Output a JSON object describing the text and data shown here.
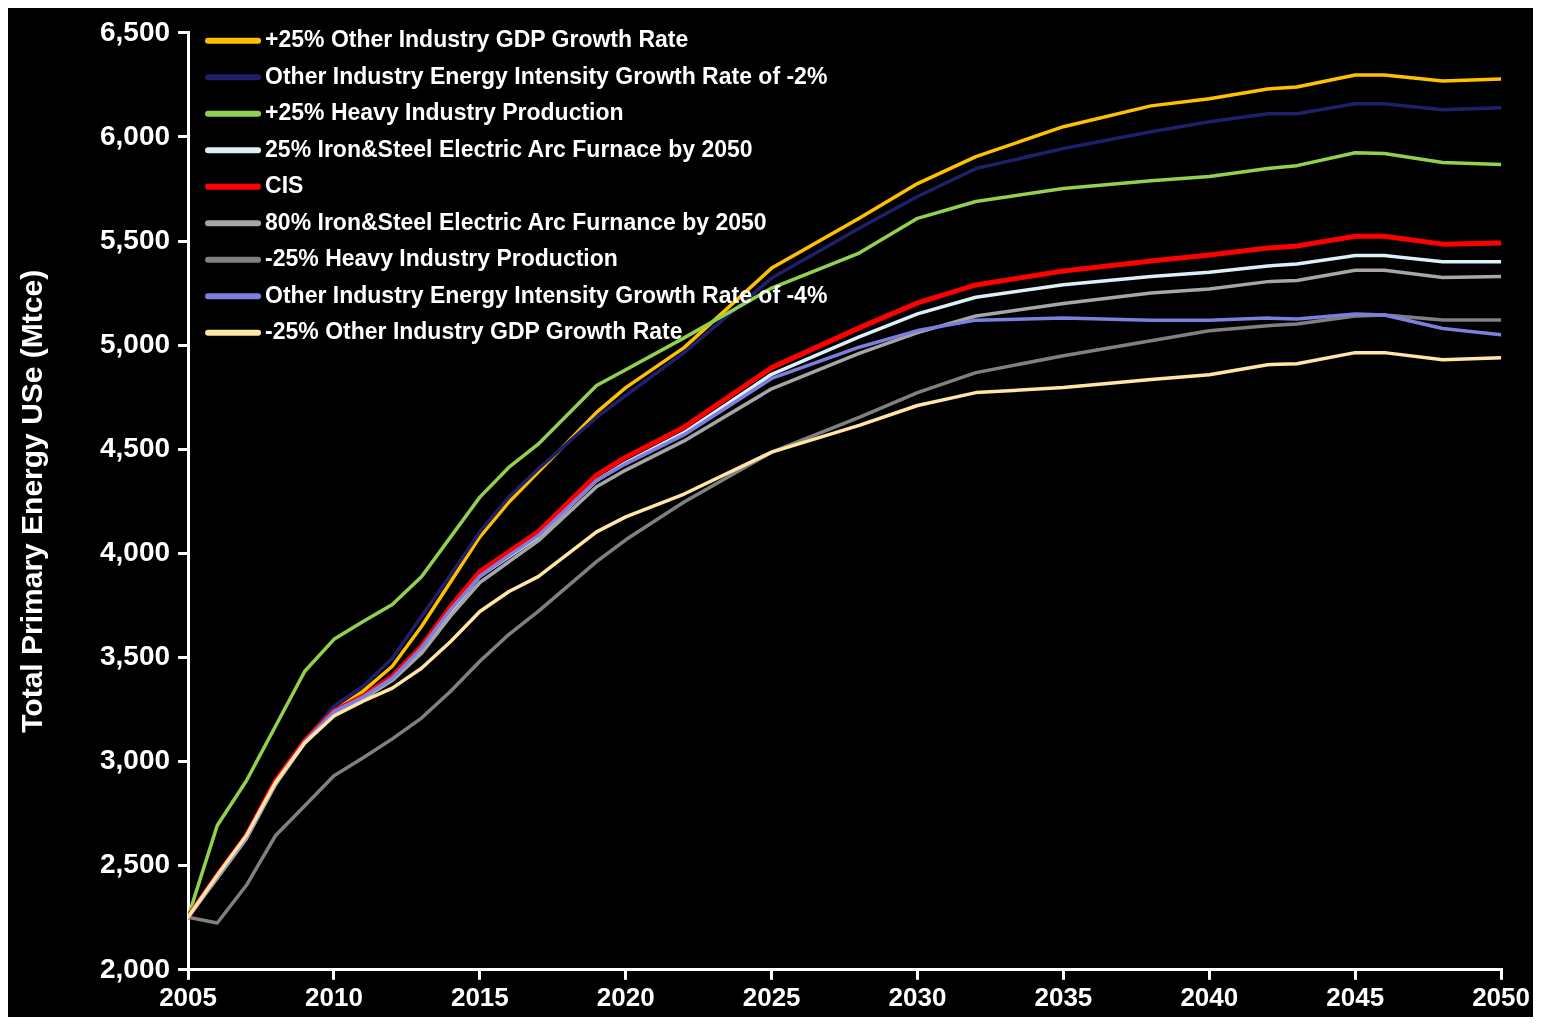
{
  "chart_data": {
    "type": "line",
    "ylabel": "Total Primary Energy USe (Mtce)",
    "x": [
      2005,
      2006,
      2007,
      2008,
      2009,
      2010,
      2011,
      2012,
      2013,
      2014,
      2015,
      2016,
      2017,
      2019,
      2020,
      2022,
      2025,
      2028,
      2030,
      2032,
      2035,
      2038,
      2040,
      2042,
      2043,
      2045,
      2046,
      2048,
      2050
    ],
    "xlim": [
      2005,
      2050
    ],
    "xticks": [
      2005,
      2010,
      2015,
      2020,
      2025,
      2030,
      2035,
      2040,
      2045,
      2050
    ],
    "ylim": [
      2000,
      6500
    ],
    "yticks": [
      {
        "value": 2000,
        "label": "2,000"
      },
      {
        "value": 2500,
        "label": "2,500"
      },
      {
        "value": 3000,
        "label": "3,000"
      },
      {
        "value": 3500,
        "label": "3,500"
      },
      {
        "value": 4000,
        "label": "4,000"
      },
      {
        "value": 4500,
        "label": "4,500"
      },
      {
        "value": 5000,
        "label": "5,000"
      },
      {
        "value": 5500,
        "label": "5,500"
      },
      {
        "value": 6000,
        "label": "6,000"
      },
      {
        "value": 6500,
        "label": "6,500"
      }
    ],
    "grid": false,
    "legend": "top left",
    "marker": "none",
    "line_style": "solid",
    "series": [
      {
        "name": "+25% Other Industry GDP Growth Rate",
        "color": "#ffc000",
        "values": [
          null,
          null,
          null,
          null,
          3100,
          3243,
          3338,
          3458,
          3649,
          3864,
          4079,
          4247,
          4390,
          4677,
          4796,
          4988,
          5370,
          5609,
          5776,
          5905,
          6049,
          6149,
          6183,
          6230,
          6240,
          6297,
          6297,
          6268,
          6278
        ]
      },
      {
        "name": "Other Industry Energy Intensity Growth Rate of -2%",
        "color": "#1f1f6b",
        "values": [
          2253,
          2454,
          2645,
          2908,
          3100,
          3267,
          3362,
          3496,
          3697,
          3897,
          4103,
          4271,
          4405,
          4653,
          4758,
          4964,
          5322,
          5561,
          5714,
          5848,
          5944,
          6025,
          6073,
          6111,
          6111,
          6159,
          6159,
          6130,
          6140
        ]
      },
      {
        "name": "+25% Heavy Industry Production",
        "color": "#92d050",
        "values": [
          2253,
          2693,
          2908,
          3171,
          3434,
          3587,
          3673,
          3754,
          3888,
          4079,
          4270,
          4414,
          4524,
          4806,
          4882,
          5035,
          5274,
          5442,
          5609,
          5690,
          5752,
          5790,
          5810,
          5848,
          5862,
          5924,
          5920,
          5877,
          5867
        ]
      },
      {
        "name": "25% Iron&Steel Electric Arc Furnace by 2050",
        "color": "#dcf0f8",
        "values": [
          2253,
          2450,
          2640,
          2900,
          3095,
          3235,
          3305,
          3395,
          3535,
          3720,
          3890,
          3985,
          4080,
          4350,
          4435,
          4580,
          4860,
          5040,
          5150,
          5230,
          5290,
          5330,
          5350,
          5380,
          5390,
          5430,
          5430,
          5400,
          5400
        ]
      },
      {
        "name": "CIS",
        "color": "#ff0000",
        "values": [
          2253,
          2454,
          2645,
          2908,
          3100,
          3243,
          3315,
          3410,
          3554,
          3745,
          3912,
          4008,
          4103,
          4376,
          4462,
          4606,
          4892,
          5083,
          5203,
          5289,
          5356,
          5404,
          5433,
          5466,
          5476,
          5523,
          5523,
          5485,
          5490
        ]
      },
      {
        "name": "80% Iron&Steel Electric Arc Furnance by 2050",
        "color": "#a6a6a6",
        "values": [
          2253,
          2440,
          2630,
          2890,
          3090,
          3230,
          3300,
          3390,
          3520,
          3700,
          3860,
          3960,
          4060,
          4320,
          4400,
          4540,
          4790,
          4960,
          5060,
          5140,
          5200,
          5250,
          5270,
          5305,
          5310,
          5360,
          5360,
          5325,
          5330
        ]
      },
      {
        "name": "-25% Heavy Industry Production",
        "color": "#808080",
        "values": [
          2253,
          2225,
          2406,
          2645,
          2788,
          2932,
          3018,
          3109,
          3209,
          3338,
          3482,
          3611,
          3721,
          3960,
          4065,
          4247,
          4486,
          4653,
          4772,
          4868,
          4949,
          5021,
          5069,
          5093,
          5102,
          5140,
          5145,
          5121,
          5121
        ]
      },
      {
        "name": "Other Industry Energy Intensity Growth Rate of -4%",
        "color": "#7b7fe0",
        "values": [
          2253,
          2450,
          2640,
          2900,
          3095,
          3240,
          3310,
          3400,
          3545,
          3730,
          3890,
          3990,
          4085,
          4350,
          4430,
          4570,
          4840,
          4990,
          5070,
          5120,
          5130,
          5120,
          5120,
          5130,
          5125,
          5150,
          5145,
          5080,
          5050
        ]
      },
      {
        "name": "-25% Other Industry GDP Growth Rate",
        "color": "#ffe6a6",
        "values": [
          2253,
          2454,
          2645,
          2900,
          3090,
          3219,
          3290,
          3353,
          3448,
          3577,
          3721,
          3817,
          3888,
          4103,
          4175,
          4285,
          4486,
          4615,
          4710,
          4772,
          4796,
          4835,
          4858,
          4906,
          4911,
          4964,
          4964,
          4930,
          4940
        ]
      }
    ]
  }
}
